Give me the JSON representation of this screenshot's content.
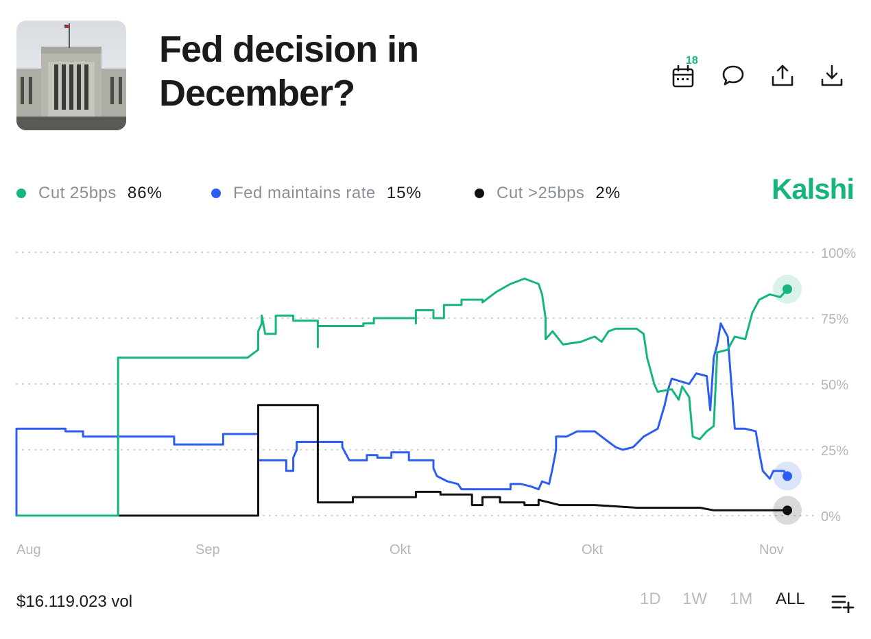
{
  "market": {
    "title": "Fed decision in December?",
    "calendar_badge": "18",
    "brand": "Kalshi"
  },
  "header_icons": [
    "calendar-icon",
    "comment-icon",
    "share-icon",
    "download-icon"
  ],
  "legend": [
    {
      "name": "Cut 25bps",
      "value": "86%",
      "color": "#17b57e"
    },
    {
      "name": "Fed maintains rate",
      "value": "15%",
      "color": "#2b5df2"
    },
    {
      "name": "Cut >25bps",
      "value": "2%",
      "color": "#111111"
    }
  ],
  "footer": {
    "volume": "$16.119.023 vol",
    "ranges": [
      {
        "label": "1D",
        "active": false
      },
      {
        "label": "1W",
        "active": false
      },
      {
        "label": "1M",
        "active": false
      },
      {
        "label": "ALL",
        "active": true
      }
    ]
  },
  "chart_data": {
    "type": "line",
    "y_tick_labels": [
      "100%",
      "75%",
      "50%",
      "25%",
      "0%"
    ],
    "x_tick_labels": [
      "Aug",
      "Sep",
      "Okt",
      "Okt",
      "Nov"
    ],
    "ylim": [
      0,
      100
    ],
    "grid": true,
    "legend_position": "top-left",
    "series": [
      {
        "name": "Cut 25bps",
        "color": "#17b57e",
        "values": [
          [
            1,
            0
          ],
          [
            30,
            0
          ],
          [
            30,
            60
          ],
          [
            67,
            60
          ],
          [
            70,
            63
          ],
          [
            70,
            70
          ],
          [
            71,
            73
          ],
          [
            71,
            76
          ],
          [
            72,
            69
          ],
          [
            75,
            69
          ],
          [
            75,
            76
          ],
          [
            80,
            76
          ],
          [
            80,
            74
          ],
          [
            87,
            74
          ],
          [
            87,
            64
          ],
          [
            87,
            72
          ],
          [
            100,
            72
          ],
          [
            100,
            73
          ],
          [
            103,
            73
          ],
          [
            103,
            75
          ],
          [
            115,
            75
          ],
          [
            115,
            73
          ],
          [
            115,
            78
          ],
          [
            120,
            78
          ],
          [
            120,
            75
          ],
          [
            123,
            75
          ],
          [
            123,
            80
          ],
          [
            128,
            80
          ],
          [
            128,
            82
          ],
          [
            134,
            82
          ],
          [
            134,
            81
          ],
          [
            138,
            85
          ],
          [
            142,
            88
          ],
          [
            146,
            90
          ],
          [
            150,
            88
          ],
          [
            151,
            84
          ],
          [
            152,
            75
          ],
          [
            152,
            67
          ],
          [
            154,
            70
          ],
          [
            157,
            65
          ],
          [
            162,
            66
          ],
          [
            166,
            68
          ],
          [
            168,
            66
          ],
          [
            170,
            70
          ],
          [
            172,
            71
          ],
          [
            178,
            71
          ],
          [
            180,
            69
          ],
          [
            181,
            60
          ],
          [
            183,
            50
          ],
          [
            184,
            47
          ],
          [
            188,
            48
          ],
          [
            190,
            44
          ],
          [
            191,
            49
          ],
          [
            193,
            45
          ],
          [
            194,
            30
          ],
          [
            196,
            29
          ],
          [
            198,
            32
          ],
          [
            200,
            34
          ],
          [
            201,
            62
          ],
          [
            204,
            63
          ],
          [
            206,
            68
          ],
          [
            209,
            67
          ],
          [
            211,
            77
          ],
          [
            213,
            82
          ],
          [
            216,
            84
          ],
          [
            219,
            83
          ],
          [
            221,
            86
          ]
        ]
      },
      {
        "name": "Fed maintains rate",
        "color": "#2b5df2",
        "values": [
          [
            1,
            33
          ],
          [
            1,
            0
          ],
          [
            1,
            33
          ],
          [
            15,
            33
          ],
          [
            15,
            32
          ],
          [
            20,
            32
          ],
          [
            20,
            30
          ],
          [
            46,
            30
          ],
          [
            46,
            27
          ],
          [
            60,
            27
          ],
          [
            60,
            31
          ],
          [
            70,
            31
          ],
          [
            70,
            21
          ],
          [
            78,
            21
          ],
          [
            78,
            17
          ],
          [
            80,
            17
          ],
          [
            80,
            22
          ],
          [
            81,
            25
          ],
          [
            81,
            28
          ],
          [
            94,
            28
          ],
          [
            94,
            26
          ],
          [
            96,
            21
          ],
          [
            101,
            21
          ],
          [
            101,
            23
          ],
          [
            104,
            23
          ],
          [
            104,
            22
          ],
          [
            108,
            22
          ],
          [
            108,
            24
          ],
          [
            113,
            24
          ],
          [
            113,
            21
          ],
          [
            120,
            21
          ],
          [
            120,
            18
          ],
          [
            121,
            15
          ],
          [
            124,
            13
          ],
          [
            127,
            12
          ],
          [
            128,
            10
          ],
          [
            142,
            10
          ],
          [
            142,
            12
          ],
          [
            145,
            12
          ],
          [
            148,
            11
          ],
          [
            150,
            10
          ],
          [
            151,
            13
          ],
          [
            153,
            12
          ],
          [
            154,
            18
          ],
          [
            155,
            25
          ],
          [
            155,
            30
          ],
          [
            158,
            30
          ],
          [
            161,
            32
          ],
          [
            163,
            32
          ],
          [
            166,
            32
          ],
          [
            168,
            30
          ],
          [
            170,
            28
          ],
          [
            172,
            26
          ],
          [
            174,
            25
          ],
          [
            177,
            26
          ],
          [
            180,
            30
          ],
          [
            184,
            33
          ],
          [
            186,
            42
          ],
          [
            187,
            48
          ],
          [
            188,
            52
          ],
          [
            193,
            50
          ],
          [
            195,
            54
          ],
          [
            198,
            53
          ],
          [
            199,
            40
          ],
          [
            200,
            60
          ],
          [
            201,
            65
          ],
          [
            202,
            73
          ],
          [
            204,
            68
          ],
          [
            206,
            33
          ],
          [
            209,
            33
          ],
          [
            212,
            32
          ],
          [
            213,
            24
          ],
          [
            214,
            17
          ],
          [
            216,
            14
          ],
          [
            217,
            17
          ],
          [
            220,
            17
          ],
          [
            221,
            15
          ]
        ]
      },
      {
        "name": "Cut >25bps",
        "color": "#111111",
        "values": [
          [
            1,
            0
          ],
          [
            70,
            0
          ],
          [
            70,
            42
          ],
          [
            87,
            42
          ],
          [
            87,
            5
          ],
          [
            97,
            5
          ],
          [
            97,
            7
          ],
          [
            115,
            7
          ],
          [
            115,
            9
          ],
          [
            122,
            9
          ],
          [
            122,
            8
          ],
          [
            131,
            8
          ],
          [
            131,
            4
          ],
          [
            134,
            4
          ],
          [
            134,
            7
          ],
          [
            139,
            7
          ],
          [
            139,
            5
          ],
          [
            146,
            5
          ],
          [
            146,
            4
          ],
          [
            150,
            4
          ],
          [
            150,
            6
          ],
          [
            156,
            4
          ],
          [
            166,
            4
          ],
          [
            178,
            3
          ],
          [
            190,
            3
          ],
          [
            192,
            3
          ],
          [
            196,
            3
          ],
          [
            200,
            2
          ],
          [
            210,
            2
          ],
          [
            216,
            2
          ],
          [
            221,
            2
          ]
        ]
      }
    ]
  }
}
